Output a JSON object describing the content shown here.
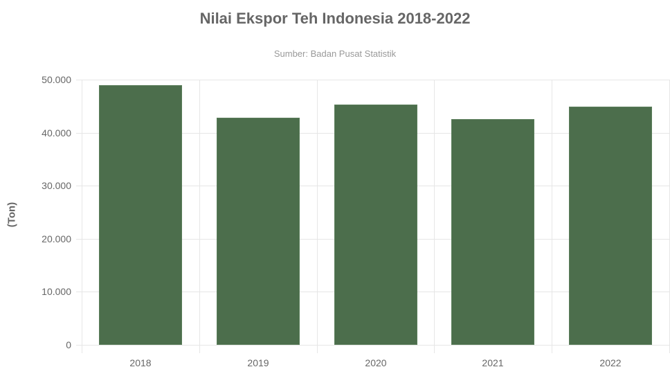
{
  "chart_data": {
    "type": "bar",
    "title": "Nilai Ekspor Teh Indonesia 2018-2022",
    "subtitle": "Sumber: Badan Pusat Statistik",
    "xlabel": "",
    "ylabel": "(Ton)",
    "categories": [
      "2018",
      "2019",
      "2020",
      "2021",
      "2022"
    ],
    "values": [
      49000,
      42800,
      45300,
      42600,
      44900
    ],
    "ylim": [
      0,
      50000
    ],
    "yticks": [
      "0",
      "10.000",
      "20.000",
      "30.000",
      "40.000",
      "50.000"
    ],
    "grid": true,
    "legend": false,
    "bar_color": "#4c6e4c"
  }
}
